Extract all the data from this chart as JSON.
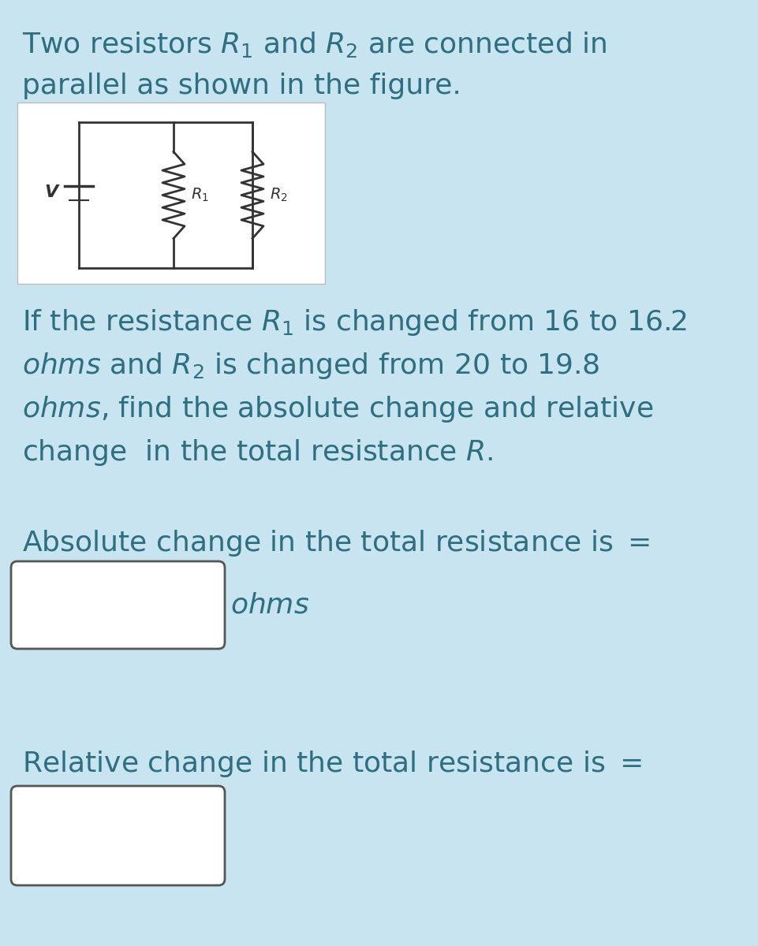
{
  "bg_color": "#c8e4f0",
  "text_color": "#2d6e80",
  "fig_width": 9.61,
  "fig_height": 12.0,
  "font_size_main": 26,
  "circuit_img_color": "#f5f5f5",
  "box_edge_color": "#555555",
  "wire_color": "#333333"
}
